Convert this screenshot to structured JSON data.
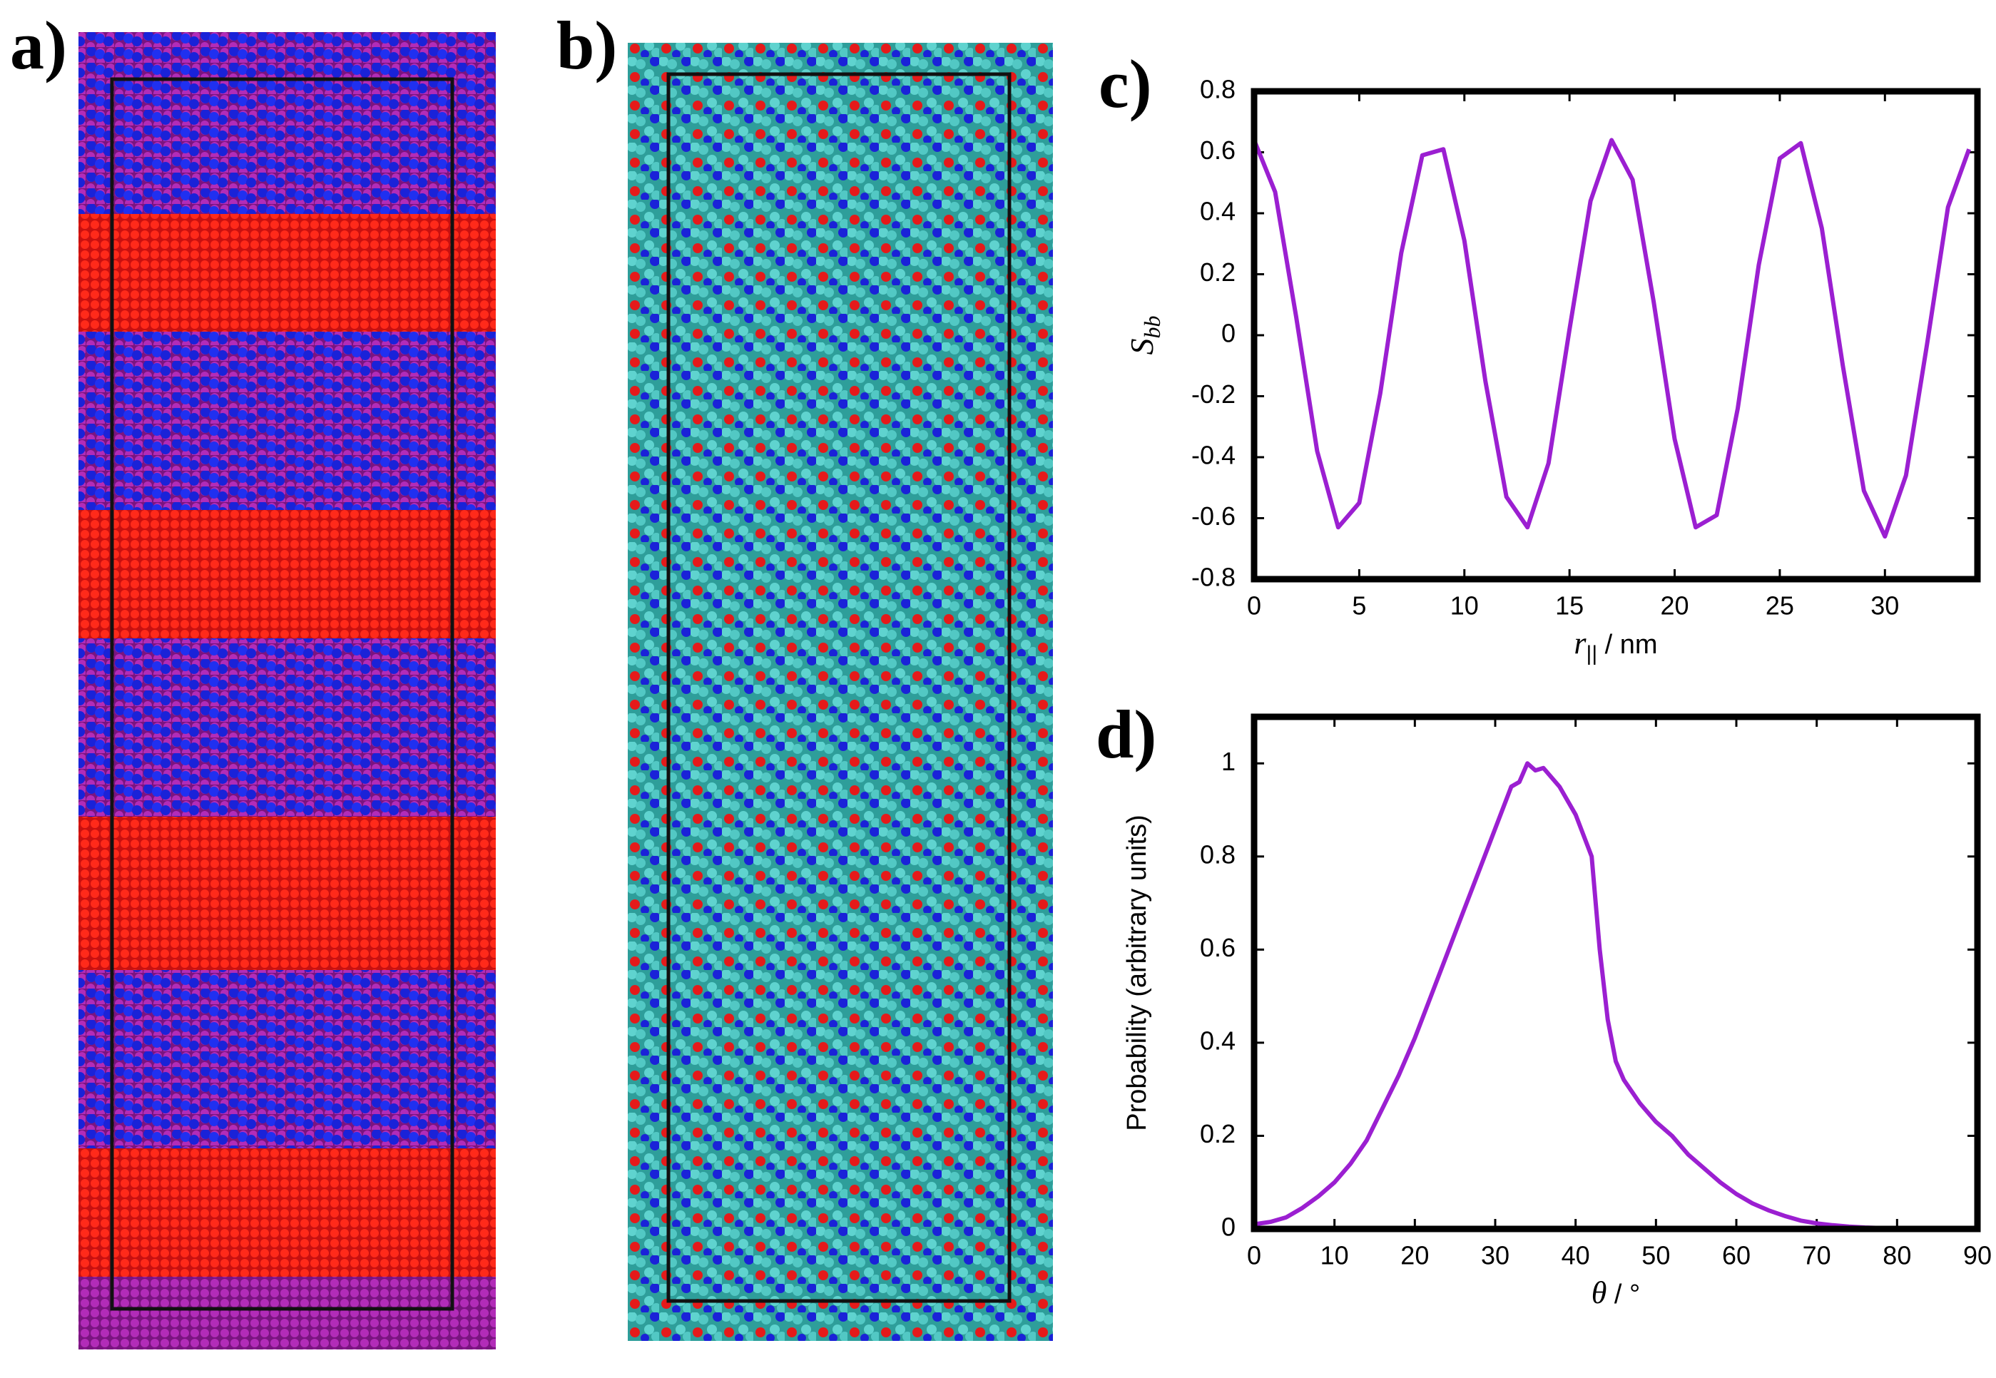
{
  "panels": [
    "a)",
    "b)",
    "c)",
    "d)"
  ],
  "chart_data": [
    {
      "type": "line",
      "color": "#9b1fd1",
      "xlabel": {
        "main": "r",
        "sub": "||",
        "rest": " / nm"
      },
      "ylabel": {
        "main": "S",
        "sub": "bb"
      },
      "x": [
        0,
        1,
        2,
        3,
        4,
        5,
        6,
        7,
        8,
        9,
        10,
        11,
        12,
        13,
        14,
        15,
        16,
        17,
        18,
        19,
        20,
        21,
        22,
        23,
        24,
        25,
        26,
        27,
        28,
        29,
        30,
        31,
        32,
        33,
        34
      ],
      "values": [
        0.64,
        0.47,
        0.06,
        -0.38,
        -0.63,
        -0.55,
        -0.19,
        0.27,
        0.59,
        0.61,
        0.31,
        -0.15,
        -0.53,
        -0.63,
        -0.42,
        0.02,
        0.44,
        0.64,
        0.51,
        0.11,
        -0.34,
        -0.63,
        -0.59,
        -0.24,
        0.23,
        0.58,
        0.63,
        0.35,
        -0.1,
        -0.51,
        -0.66,
        -0.46,
        -0.03,
        0.42,
        0.61
      ],
      "xlim": [
        0,
        34.4
      ],
      "xticks": [
        0,
        5,
        10,
        15,
        20,
        25,
        30
      ],
      "ylim": [
        -0.8,
        0.8
      ],
      "yticks": [
        0.8,
        0.6,
        0.4,
        0.2,
        0,
        -0.2,
        -0.4,
        -0.6,
        -0.8
      ]
    },
    {
      "type": "line",
      "color": "#9b1fd1",
      "xlabel": {
        "main": "θ",
        "rest": " / °"
      },
      "ylabel": "Probability (arbitrary units)",
      "x": [
        0,
        2,
        4,
        6,
        8,
        10,
        12,
        14,
        16,
        18,
        20,
        22,
        24,
        26,
        28,
        30,
        32,
        33,
        34,
        35,
        36,
        38,
        40,
        42,
        43,
        44,
        45,
        46,
        48,
        50,
        52,
        54,
        56,
        58,
        60,
        62,
        64,
        66,
        68,
        70,
        72,
        74,
        76,
        78,
        80
      ],
      "values": [
        0.01,
        0.015,
        0.025,
        0.045,
        0.07,
        0.1,
        0.14,
        0.19,
        0.26,
        0.33,
        0.41,
        0.5,
        0.59,
        0.68,
        0.77,
        0.86,
        0.95,
        0.96,
        1.0,
        0.985,
        0.99,
        0.95,
        0.89,
        0.8,
        0.6,
        0.45,
        0.36,
        0.32,
        0.27,
        0.23,
        0.2,
        0.16,
        0.13,
        0.1,
        0.075,
        0.055,
        0.04,
        0.028,
        0.018,
        0.012,
        0.008,
        0.005,
        0.003,
        0.002,
        0.001
      ],
      "xlim": [
        0,
        90
      ],
      "xticks": [
        0,
        10,
        20,
        30,
        40,
        50,
        60,
        70,
        80,
        90
      ],
      "ylim": [
        0,
        1.1
      ],
      "yticks": [
        0,
        0.2,
        0.4,
        0.6,
        0.8,
        1
      ]
    }
  ]
}
